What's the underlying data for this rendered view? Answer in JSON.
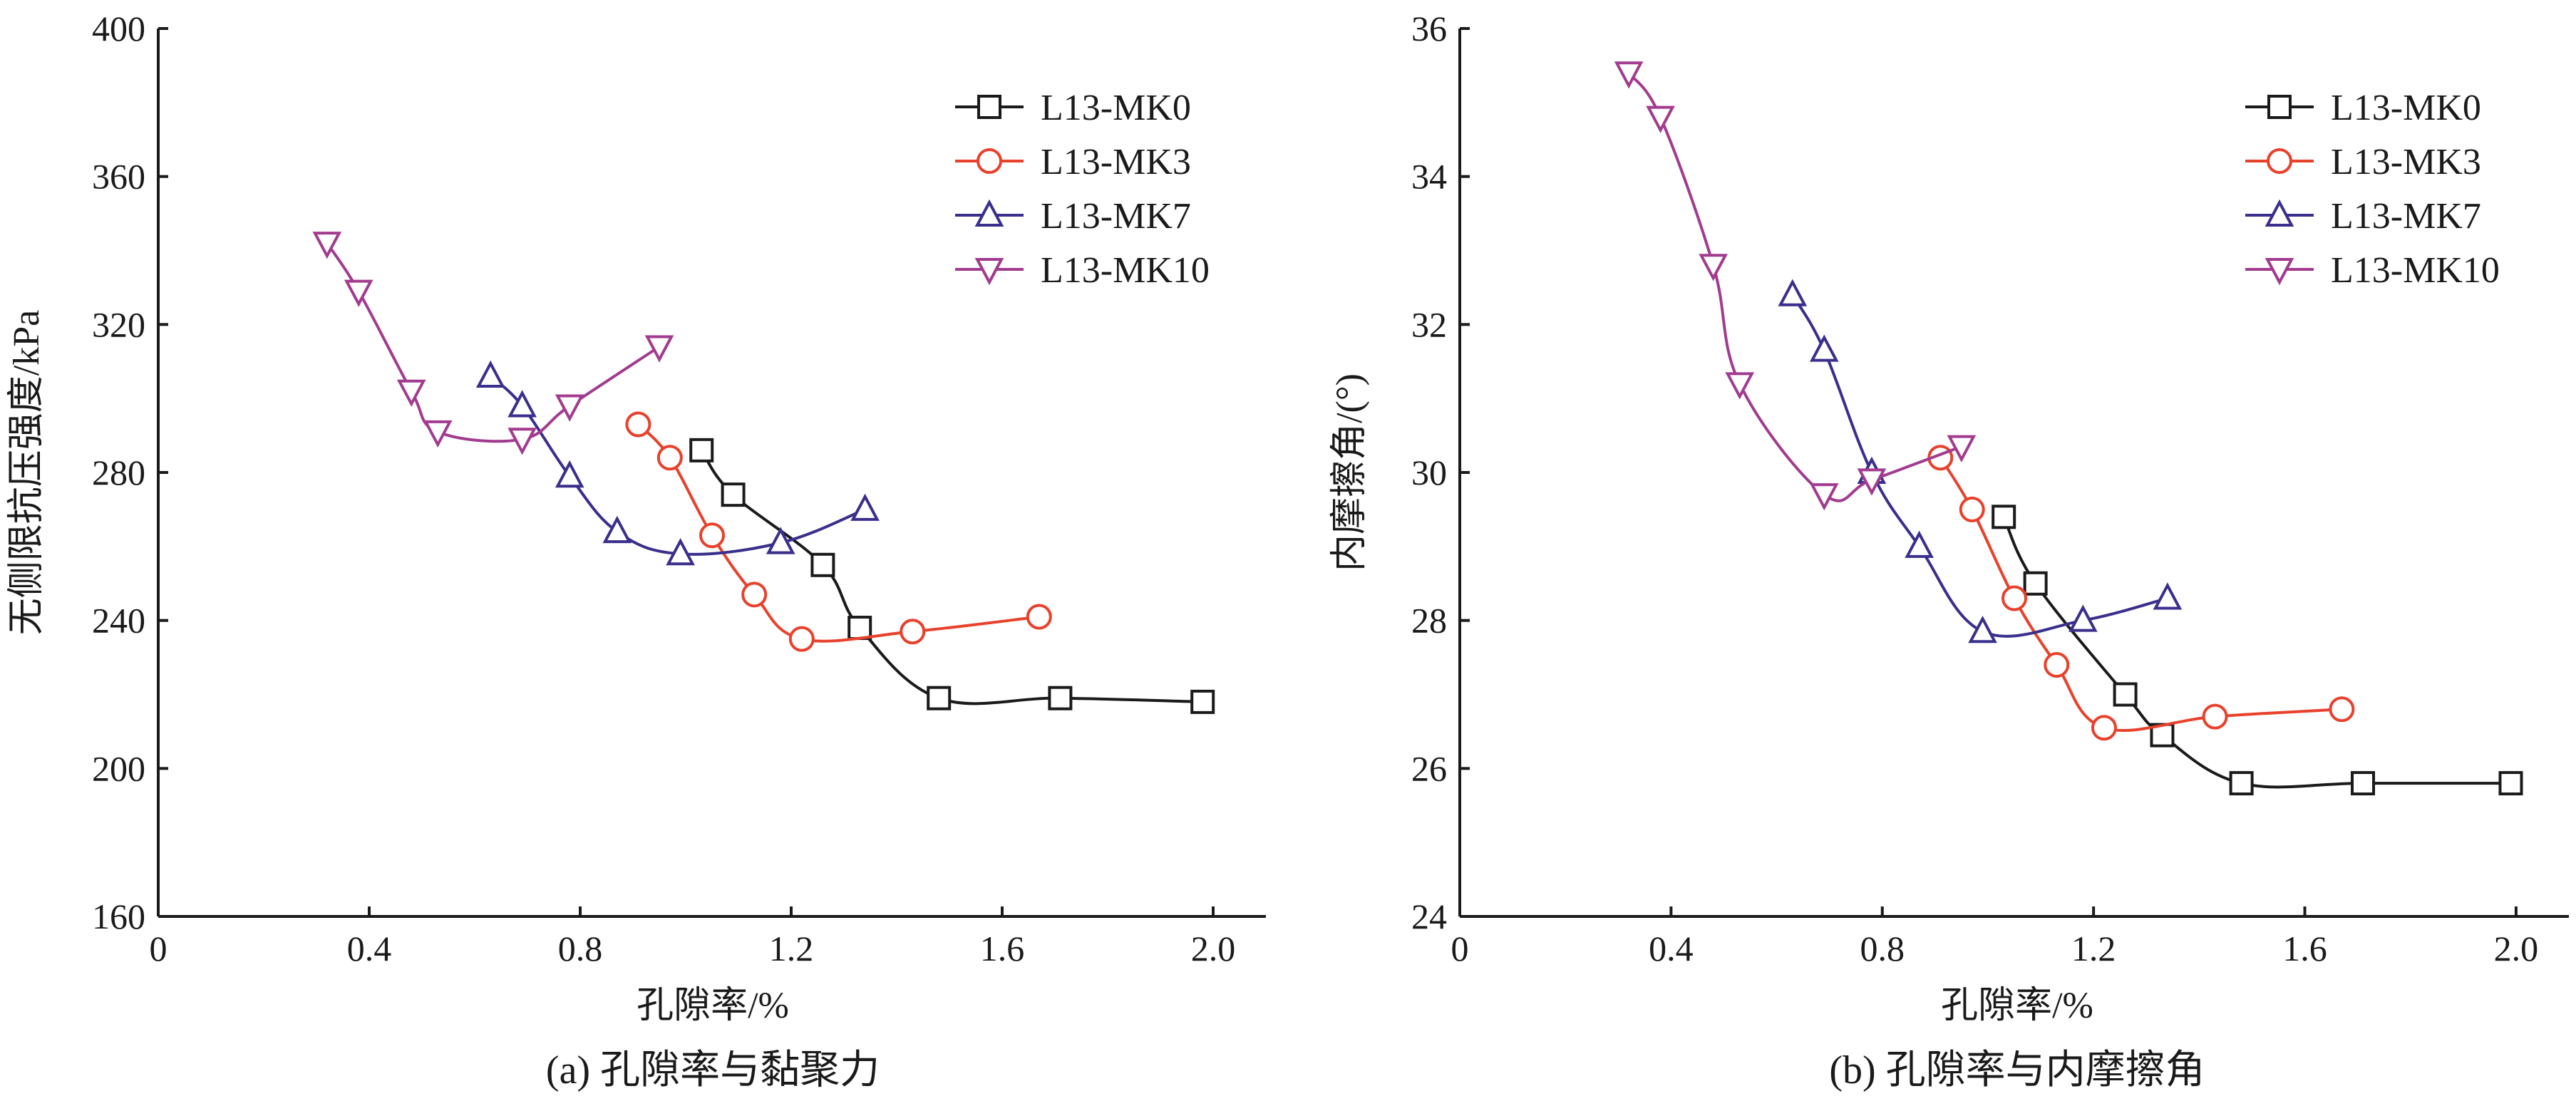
{
  "chart_data": [
    {
      "type": "line",
      "caption": "(a) 孔隙率与黏聚力",
      "xlabel": "孔隙率/%",
      "ylabel": "无侧限抗压强度/kPa",
      "xlim": [
        0,
        2.1
      ],
      "ylim": [
        160,
        400
      ],
      "xticks": [
        "0",
        "0.4",
        "0.8",
        "1.2",
        "1.6",
        "2.0"
      ],
      "yticks": [
        "160",
        "200",
        "240",
        "280",
        "320",
        "360",
        "400"
      ],
      "legend_position": "top-right",
      "series": [
        {
          "name": "L13-MK0",
          "color": "#1a1a1a",
          "marker": "square",
          "x": [
            1.03,
            1.09,
            1.26,
            1.33,
            1.48,
            1.71,
            1.98
          ],
          "y": [
            286,
            274,
            255,
            238,
            219,
            219,
            218
          ]
        },
        {
          "name": "L13-MK3",
          "color": "#e8412c",
          "marker": "circle",
          "x": [
            0.91,
            0.97,
            1.05,
            1.13,
            1.22,
            1.43,
            1.67
          ],
          "y": [
            293,
            284,
            263,
            247,
            235,
            237,
            241
          ]
        },
        {
          "name": "L13-MK7",
          "color": "#3a2f8c",
          "marker": "triangle-up",
          "x": [
            0.63,
            0.69,
            0.78,
            0.87,
            0.99,
            1.18,
            1.34
          ],
          "y": [
            306,
            298,
            279,
            264,
            258,
            261,
            270
          ]
        },
        {
          "name": "L13-MK10",
          "color": "#a23b8f",
          "marker": "triangle-down",
          "x": [
            0.32,
            0.38,
            0.48,
            0.53,
            0.69,
            0.78,
            0.95
          ],
          "y": [
            342,
            329,
            302,
            291,
            289,
            298,
            314
          ]
        }
      ]
    },
    {
      "type": "line",
      "caption": "(b) 孔隙率与内摩擦角",
      "xlabel": "孔隙率/%",
      "ylabel": "内摩擦角/(°)",
      "xlim": [
        0,
        2.1
      ],
      "ylim": [
        24,
        36
      ],
      "xticks": [
        "0",
        "0.4",
        "0.8",
        "1.2",
        "1.6",
        "2.0"
      ],
      "yticks": [
        "24",
        "26",
        "28",
        "30",
        "32",
        "34",
        "36"
      ],
      "legend_position": "top-right",
      "series": [
        {
          "name": "L13-MK0",
          "color": "#1a1a1a",
          "marker": "square",
          "x": [
            1.03,
            1.09,
            1.26,
            1.33,
            1.48,
            1.71,
            1.99
          ],
          "y": [
            29.4,
            28.5,
            27.0,
            26.45,
            25.8,
            25.8,
            25.8
          ]
        },
        {
          "name": "L13-MK3",
          "color": "#e8412c",
          "marker": "circle",
          "x": [
            0.91,
            0.97,
            1.05,
            1.13,
            1.22,
            1.43,
            1.67
          ],
          "y": [
            30.2,
            29.5,
            28.3,
            27.4,
            26.55,
            26.7,
            26.8
          ]
        },
        {
          "name": "L13-MK7",
          "color": "#3a2f8c",
          "marker": "triangle-up",
          "x": [
            0.63,
            0.69,
            0.78,
            0.87,
            0.99,
            1.18,
            1.34
          ],
          "y": [
            32.4,
            31.65,
            30.0,
            29.0,
            27.85,
            28.0,
            28.3
          ]
        },
        {
          "name": "L13-MK10",
          "color": "#a23b8f",
          "marker": "triangle-down",
          "x": [
            0.32,
            0.38,
            0.48,
            0.53,
            0.69,
            0.78,
            0.95
          ],
          "y": [
            35.4,
            34.8,
            32.8,
            31.2,
            29.7,
            29.9,
            30.35
          ]
        }
      ]
    }
  ]
}
